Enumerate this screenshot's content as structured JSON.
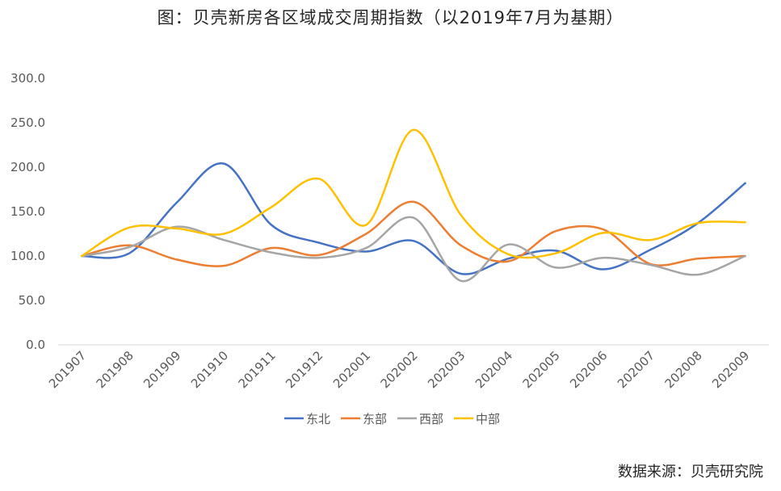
{
  "title": "图：贝壳新房各区域成交周期指数（以2019年7月为基期）",
  "source": "数据来源：贝壳研究院",
  "chart_data": {
    "type": "line",
    "title": "图：贝壳新房各区域成交周期指数（以2019年7月为基期）",
    "x": [
      "201907",
      "201908",
      "201909",
      "201910",
      "201911",
      "201912",
      "202001",
      "202002",
      "202003",
      "202004",
      "202005",
      "202006",
      "202007",
      "202008",
      "202009"
    ],
    "ylim": [
      0,
      300
    ],
    "yticks": [
      "0.0",
      "50.0",
      "100.0",
      "150.0",
      "200.0",
      "250.0",
      "300.0"
    ],
    "grid": false,
    "legend_position": "bottom",
    "series": [
      {
        "name": "东北",
        "color": "#4472C4",
        "values": [
          100,
          103,
          160,
          204,
          135,
          115,
          105,
          117,
          80,
          97,
          106,
          85,
          107,
          137,
          182
        ]
      },
      {
        "name": "东部",
        "color": "#ED7D31",
        "values": [
          100,
          112,
          96,
          89,
          109,
          101,
          125,
          161,
          112,
          94,
          128,
          130,
          91,
          97,
          100
        ]
      },
      {
        "name": "西部",
        "color": "#A5A5A5",
        "values": [
          100,
          110,
          133,
          118,
          104,
          98,
          109,
          143,
          72,
          113,
          87,
          98,
          90,
          79,
          100
        ]
      },
      {
        "name": "中部",
        "color": "#FFC000",
        "values": [
          100,
          132,
          131,
          125,
          155,
          187,
          135,
          242,
          146,
          102,
          103,
          126,
          118,
          137,
          138
        ]
      }
    ]
  }
}
